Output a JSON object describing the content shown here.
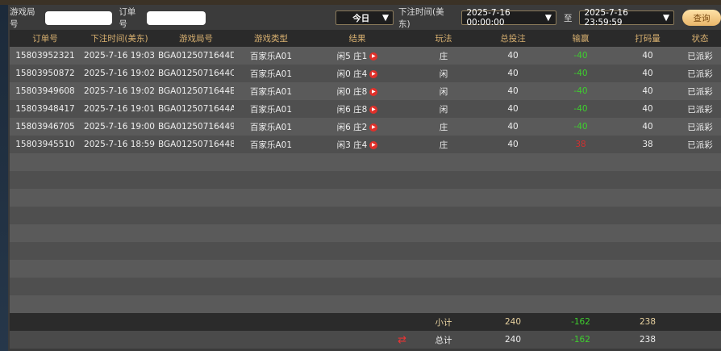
{
  "filters": {
    "round_label": "游戏局号",
    "round_value": "",
    "order_label": "订单号",
    "order_value": "",
    "period": "今日",
    "time_label": "下注时间(美东)",
    "start": "2025-7-16 00:00:00",
    "to_label": "至",
    "end": "2025-7-16 23:59:59",
    "query": "查询"
  },
  "columns": [
    "订单号",
    "下注时间(美东)",
    "游戏局号",
    "游戏类型",
    "结果",
    "玩法",
    "总投注",
    "输赢",
    "打码量",
    "状态"
  ],
  "rows": [
    [
      "15803952321",
      "2025-7-16 19:03",
      "BGA0125071644D",
      "百家乐A01",
      "闲5 庄1",
      "庄",
      "40",
      "-40",
      "40",
      "已派彩"
    ],
    [
      "15803950872",
      "2025-7-16 19:02",
      "BGA0125071644C",
      "百家乐A01",
      "闲0 庄4",
      "闲",
      "40",
      "-40",
      "40",
      "已派彩"
    ],
    [
      "15803949608",
      "2025-7-16 19:02",
      "BGA0125071644B",
      "百家乐A01",
      "闲0 庄8",
      "闲",
      "40",
      "-40",
      "40",
      "已派彩"
    ],
    [
      "15803948417",
      "2025-7-16 19:01",
      "BGA0125071644A",
      "百家乐A01",
      "闲6 庄8",
      "闲",
      "40",
      "-40",
      "40",
      "已派彩"
    ],
    [
      "15803946705",
      "2025-7-16 19:00",
      "BGA01250716449",
      "百家乐A01",
      "闲6 庄2",
      "庄",
      "40",
      "-40",
      "40",
      "已派彩"
    ],
    [
      "15803945510",
      "2025-7-16 18:59",
      "BGA01250716448",
      "百家乐A01",
      "闲3 庄4",
      "庄",
      "40",
      "38",
      "38",
      "已派彩"
    ]
  ],
  "subtotal": {
    "label": "小计",
    "bet": "240",
    "win": "-162",
    "turnover": "238"
  },
  "total": {
    "label": "总计",
    "bet": "240",
    "win": "-162",
    "turnover": "238"
  },
  "colors": {
    "header_text": "#d8b070",
    "loss": "#3ecf2e",
    "win": "#d03030",
    "button": "#e9b66a"
  }
}
